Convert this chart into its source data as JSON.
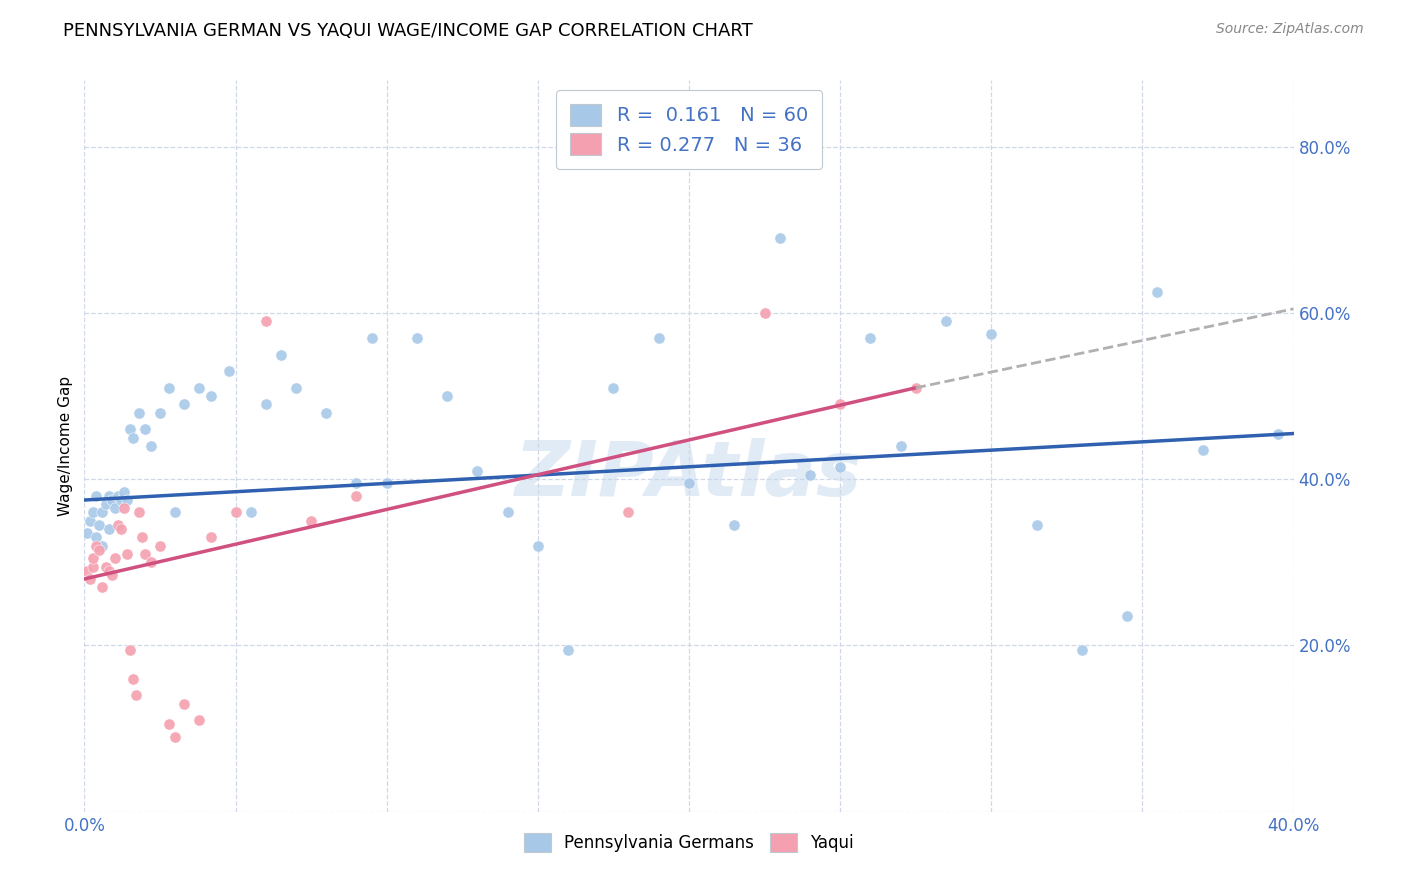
{
  "title": "PENNSYLVANIA GERMAN VS YAQUI WAGE/INCOME GAP CORRELATION CHART",
  "source": "Source: ZipAtlas.com",
  "ylabel": "Wage/Income Gap",
  "watermark": "ZIPAtlas",
  "xlim": [
    0.0,
    0.4
  ],
  "ylim": [
    0.0,
    0.88
  ],
  "blue_R": "0.161",
  "blue_N": "60",
  "pink_R": "0.277",
  "pink_N": "36",
  "blue_color": "#a8c8e8",
  "pink_color": "#f4a0b0",
  "blue_line_color": "#3060b0",
  "pink_line_color": "#d05080",
  "dashed_line_color": "#b0b0b0",
  "background_color": "#ffffff",
  "grid_color": "#d0d8e8",
  "legend_edge_color": "#c0c8d0",
  "blue_scatter_x": [
    0.001,
    0.002,
    0.003,
    0.004,
    0.004,
    0.005,
    0.006,
    0.006,
    0.007,
    0.008,
    0.008,
    0.009,
    0.01,
    0.011,
    0.012,
    0.013,
    0.014,
    0.015,
    0.016,
    0.018,
    0.02,
    0.022,
    0.025,
    0.028,
    0.03,
    0.033,
    0.038,
    0.042,
    0.048,
    0.055,
    0.06,
    0.065,
    0.07,
    0.08,
    0.09,
    0.095,
    0.1,
    0.11,
    0.12,
    0.13,
    0.14,
    0.15,
    0.16,
    0.175,
    0.19,
    0.2,
    0.215,
    0.23,
    0.24,
    0.25,
    0.26,
    0.27,
    0.285,
    0.3,
    0.315,
    0.33,
    0.345,
    0.355,
    0.37,
    0.395
  ],
  "blue_scatter_y": [
    0.335,
    0.35,
    0.36,
    0.33,
    0.38,
    0.345,
    0.32,
    0.36,
    0.37,
    0.34,
    0.38,
    0.375,
    0.365,
    0.38,
    0.375,
    0.385,
    0.375,
    0.46,
    0.45,
    0.48,
    0.46,
    0.44,
    0.48,
    0.51,
    0.36,
    0.49,
    0.51,
    0.5,
    0.53,
    0.36,
    0.49,
    0.55,
    0.51,
    0.48,
    0.395,
    0.57,
    0.395,
    0.57,
    0.5,
    0.41,
    0.36,
    0.32,
    0.195,
    0.51,
    0.57,
    0.395,
    0.345,
    0.69,
    0.405,
    0.415,
    0.57,
    0.44,
    0.59,
    0.575,
    0.345,
    0.195,
    0.235,
    0.625,
    0.435,
    0.455
  ],
  "pink_scatter_x": [
    0.001,
    0.002,
    0.003,
    0.003,
    0.004,
    0.005,
    0.006,
    0.007,
    0.008,
    0.009,
    0.01,
    0.011,
    0.012,
    0.013,
    0.014,
    0.015,
    0.016,
    0.017,
    0.018,
    0.019,
    0.02,
    0.022,
    0.025,
    0.028,
    0.03,
    0.033,
    0.038,
    0.042,
    0.05,
    0.06,
    0.075,
    0.09,
    0.18,
    0.225,
    0.25,
    0.275
  ],
  "pink_scatter_y": [
    0.29,
    0.28,
    0.295,
    0.305,
    0.32,
    0.315,
    0.27,
    0.295,
    0.29,
    0.285,
    0.305,
    0.345,
    0.34,
    0.365,
    0.31,
    0.195,
    0.16,
    0.14,
    0.36,
    0.33,
    0.31,
    0.3,
    0.32,
    0.105,
    0.09,
    0.13,
    0.11,
    0.33,
    0.36,
    0.59,
    0.35,
    0.38,
    0.36,
    0.6,
    0.49,
    0.51
  ],
  "blue_line_x0": 0.0,
  "blue_line_x1": 0.4,
  "blue_line_y0": 0.375,
  "blue_line_y1": 0.455,
  "pink_line_x0": 0.0,
  "pink_line_x1": 0.275,
  "pink_line_y0": 0.28,
  "pink_line_y1": 0.51,
  "dash_line_x0": 0.275,
  "dash_line_x1": 0.4,
  "dash_line_y0": 0.51,
  "dash_line_y1": 0.605
}
